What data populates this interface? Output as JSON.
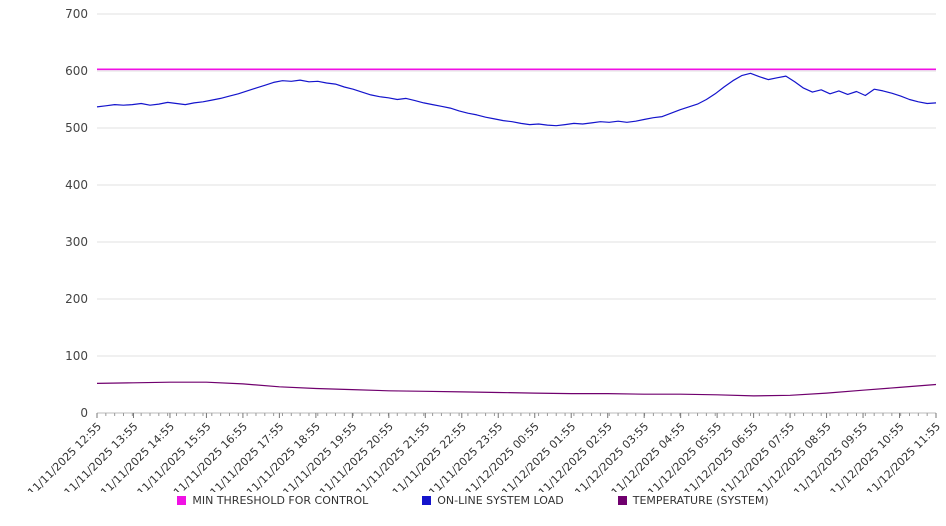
{
  "chart_data": {
    "type": "line",
    "title": "",
    "xlabel": "",
    "ylabel": "",
    "ylim": [
      0,
      700
    ],
    "ytick_step": 100,
    "ytick_labels": [
      "0",
      "100",
      "200",
      "300",
      "400",
      "500",
      "600",
      "700"
    ],
    "grid": true,
    "legend_position": "bottom",
    "x_labels": [
      "11/11/2025 12:55",
      "11/11/2025 13:55",
      "11/11/2025 14:55",
      "11/11/2025 15:55",
      "11/11/2025 16:55",
      "11/11/2025 17:55",
      "11/11/2025 18:55",
      "11/11/2025 19:55",
      "11/11/2025 20:55",
      "11/11/2025 21:55",
      "11/11/2025 22:55",
      "11/11/2025 23:55",
      "11/12/2025 00:55",
      "11/12/2025 01:55",
      "11/12/2025 02:55",
      "11/12/2025 03:55",
      "11/12/2025 04:55",
      "11/12/2025 05:55",
      "11/12/2025 06:55",
      "11/12/2025 07:55",
      "11/12/2025 08:55",
      "11/12/2025 09:55",
      "11/12/2025 10:55",
      "11/12/2025 11:55"
    ],
    "series": [
      {
        "name": "MIN THRESHOLD FOR CONTROL",
        "color": "#f011e4",
        "width": 1.6,
        "values": [
          603,
          603
        ]
      },
      {
        "name": "ON-LINE SYSTEM LOAD",
        "color": "#1414cc",
        "width": 1.2,
        "values": [
          537,
          539,
          541,
          540,
          541,
          543,
          540,
          542,
          545,
          543,
          541,
          544,
          546,
          549,
          552,
          556,
          560,
          565,
          570,
          575,
          580,
          583,
          582,
          584,
          581,
          582,
          579,
          577,
          572,
          568,
          563,
          558,
          555,
          553,
          550,
          552,
          548,
          544,
          541,
          538,
          535,
          530,
          526,
          523,
          519,
          516,
          513,
          511,
          508,
          506,
          507,
          505,
          504,
          506,
          508,
          507,
          509,
          511,
          510,
          512,
          510,
          512,
          515,
          518,
          520,
          526,
          532,
          537,
          542,
          550,
          560,
          572,
          583,
          592,
          596,
          590,
          585,
          588,
          591,
          581,
          570,
          563,
          567,
          560,
          565,
          559,
          564,
          557,
          568,
          565,
          561,
          556,
          550,
          546,
          543,
          544
        ]
      },
      {
        "name": "TEMPERATURE (SYSTEM)",
        "color": "#70006e",
        "width": 1.2,
        "values": [
          52,
          53,
          54,
          54,
          51,
          46,
          43,
          41,
          39,
          38,
          37,
          36,
          35,
          34,
          34,
          33,
          33,
          32,
          30,
          31,
          35,
          40,
          45,
          50
        ]
      }
    ]
  },
  "legend": {
    "items": [
      {
        "label": "MIN THRESHOLD FOR CONTROL"
      },
      {
        "label": "ON-LINE SYSTEM LOAD"
      },
      {
        "label": "TEMPERATURE (SYSTEM)"
      }
    ]
  }
}
